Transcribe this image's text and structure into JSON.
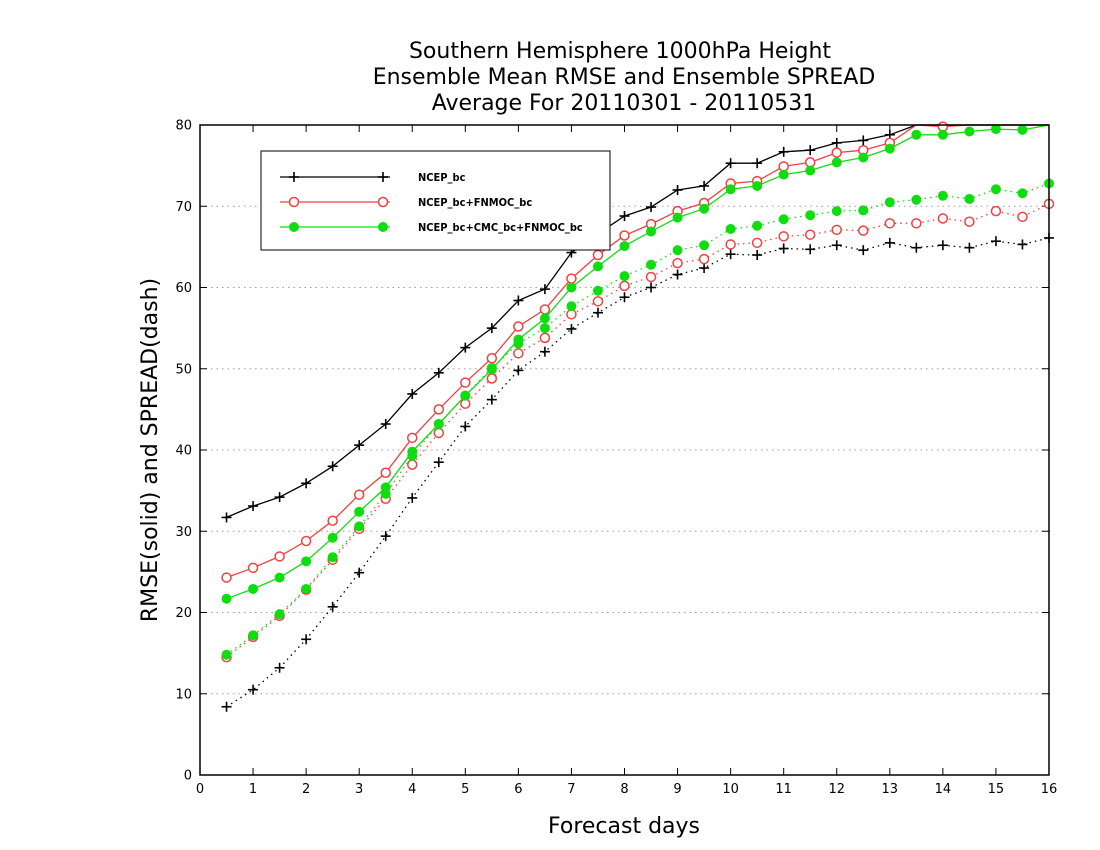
{
  "chart_data": {
    "type": "line",
    "title": [
      "Southern Hemisphere 1000hPa Height",
      "Ensemble Mean RMSE and Ensemble SPREAD",
      "Average For 20110301 - 20110531"
    ],
    "xlabel": "Forecast days",
    "ylabel": "RMSE(solid) and SPREAD(dash)",
    "xlim": [
      0,
      16
    ],
    "ylim": [
      0,
      80
    ],
    "xticks": [
      "0",
      "1",
      "2",
      "3",
      "4",
      "5",
      "6",
      "7",
      "8",
      "9",
      "10",
      "11",
      "12",
      "13",
      "14",
      "15",
      "16"
    ],
    "yticks": [
      "0",
      "10",
      "20",
      "30",
      "40",
      "50",
      "60",
      "70",
      "80"
    ],
    "grid": "horizontal dotted",
    "legend_position": "top-left",
    "x": [
      0.5,
      1,
      1.5,
      2,
      2.5,
      3,
      3.5,
      4,
      4.5,
      5,
      5.5,
      6,
      6.5,
      7,
      7.5,
      8,
      8.5,
      9,
      9.5,
      10,
      10.5,
      11,
      11.5,
      12,
      12.5,
      13,
      13.5,
      14,
      14.5,
      15,
      15.5,
      16
    ],
    "series": [
      {
        "name": "NCEP_bc",
        "color": "#000000",
        "marker": "plus",
        "rmse": [
          31.7,
          33.1,
          34.2,
          35.9,
          38.0,
          40.6,
          43.2,
          46.9,
          49.5,
          52.6,
          55.0,
          58.4,
          59.8,
          64.3,
          66.6,
          68.8,
          69.9,
          72.0,
          72.5,
          75.3,
          75.3,
          76.7,
          76.9,
          77.8,
          78.1,
          78.8,
          80.3,
          80.5,
          80.8,
          81.0,
          81.0,
          81.2
        ],
        "spread": [
          8.4,
          10.5,
          13.2,
          16.7,
          20.7,
          24.9,
          29.4,
          34.1,
          38.5,
          42.9,
          46.2,
          49.8,
          52.1,
          54.9,
          56.9,
          58.8,
          60.0,
          61.6,
          62.4,
          64.1,
          64.0,
          64.8,
          64.7,
          65.2,
          64.6,
          65.5,
          64.9,
          65.2,
          64.9,
          65.7,
          65.3,
          66.1
        ]
      },
      {
        "name": "NCEP_bc+FNMOC_bc",
        "color": "#f04040",
        "marker": "open-circle",
        "rmse": [
          24.3,
          25.5,
          26.9,
          28.8,
          31.3,
          34.5,
          37.2,
          41.5,
          45.0,
          48.3,
          51.3,
          55.2,
          57.3,
          61.1,
          64.0,
          66.4,
          67.8,
          69.4,
          70.4,
          72.8,
          73.1,
          74.9,
          75.4,
          76.6,
          76.9,
          77.8,
          80.1,
          79.8,
          80.1,
          80.3,
          80.4,
          80.5
        ],
        "spread": [
          14.5,
          17.0,
          19.6,
          22.8,
          26.5,
          30.3,
          34.0,
          38.2,
          42.1,
          45.7,
          48.8,
          51.9,
          53.8,
          56.7,
          58.3,
          60.2,
          61.3,
          63.0,
          63.5,
          65.3,
          65.5,
          66.3,
          66.5,
          67.1,
          67.0,
          67.9,
          67.9,
          68.5,
          68.1,
          69.4,
          68.7,
          70.3
        ]
      },
      {
        "name": "NCEP_bc+CMC_bc+FNMOC_bc",
        "color": "#10dd10",
        "marker": "filled-circle",
        "rmse": [
          21.7,
          22.9,
          24.3,
          26.3,
          29.2,
          32.4,
          35.4,
          39.8,
          43.2,
          46.7,
          49.9,
          53.6,
          56.2,
          60.0,
          62.6,
          65.1,
          66.9,
          68.6,
          69.7,
          72.1,
          72.5,
          73.9,
          74.4,
          75.4,
          76.0,
          77.1,
          78.8,
          78.8,
          79.2,
          79.5,
          79.4,
          80.2
        ],
        "spread": [
          14.8,
          17.2,
          19.8,
          22.9,
          26.8,
          30.6,
          34.6,
          39.3,
          43.2,
          46.7,
          50.1,
          53.1,
          55.0,
          57.7,
          59.6,
          61.4,
          62.8,
          64.6,
          65.2,
          67.2,
          67.6,
          68.4,
          68.9,
          69.4,
          69.5,
          70.5,
          70.8,
          71.3,
          70.9,
          72.1,
          71.6,
          72.8
        ]
      }
    ]
  }
}
